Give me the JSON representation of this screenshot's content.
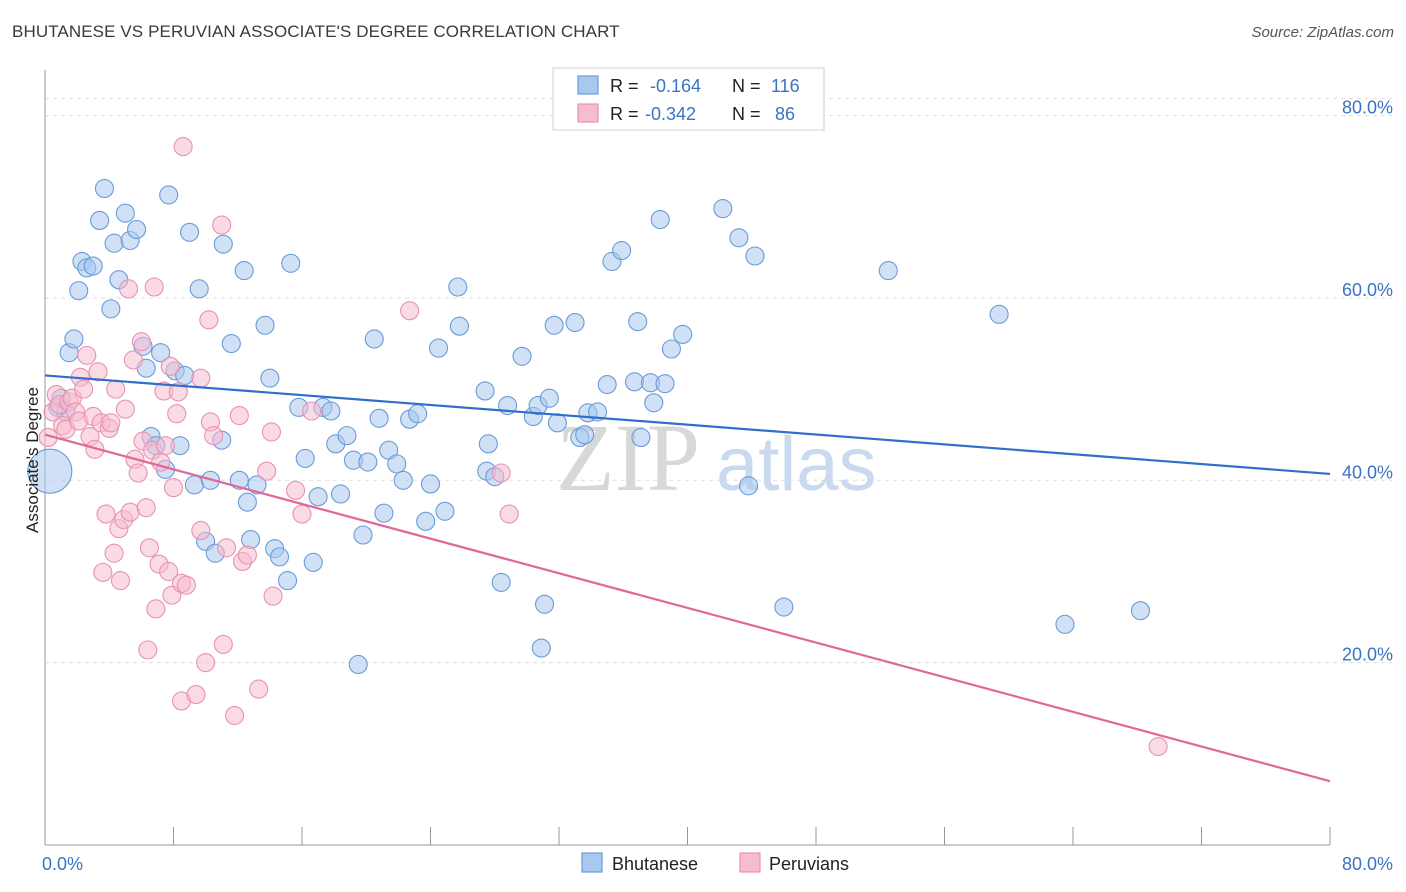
{
  "title": "BHUTANESE VS PERUVIAN ASSOCIATE'S DEGREE CORRELATION CHART",
  "source": "Source: ZipAtlas.com",
  "watermark": {
    "zip": "ZIP",
    "atlas": "atlas"
  },
  "colors": {
    "blue_fill": "#a9c8ef",
    "blue_stroke": "#6a9bd8",
    "blue_line": "#2f6fcb",
    "pink_fill": "#f6bcd0",
    "pink_stroke": "#e892b0",
    "pink_line": "#e0679a",
    "axis_text": "#3b73c4",
    "grid": "#dddddd"
  },
  "legend": {
    "rows": [
      {
        "r_label": "R =",
        "r_value": "-0.164",
        "n_label": "N =",
        "n_value": "116",
        "series": "blue"
      },
      {
        "r_label": "R =",
        "r_value": "-0.342",
        "n_label": "N =",
        "n_value": "86",
        "series": "pink"
      }
    ]
  },
  "chart_data": {
    "type": "scatter",
    "title": "BHUTANESE VS PERUVIAN ASSOCIATE'S DEGREE CORRELATION CHART",
    "xlabel": "",
    "ylabel": "Associate's Degree",
    "xlim": [
      0,
      80
    ],
    "ylim": [
      0,
      85
    ],
    "x_tick_labels": [
      "0.0%",
      "80.0%"
    ],
    "y_ticks": [
      20,
      40,
      60,
      80
    ],
    "y_tick_labels": [
      "20.0%",
      "40.0%",
      "60.0%",
      "80.0%"
    ],
    "grid": true,
    "legend_placement": "top-center",
    "series": [
      {
        "name": "Bhutanese",
        "color": "#6a9bd8",
        "trend": {
          "x": [
            0,
            80
          ],
          "y": [
            51.5,
            40.7
          ]
        },
        "points": [
          [
            0.3,
            41
          ],
          [
            0.8,
            48
          ],
          [
            1,
            49
          ],
          [
            1.3,
            47.5
          ],
          [
            1.5,
            54
          ],
          [
            1.8,
            55.5
          ],
          [
            2.1,
            60.8
          ],
          [
            2.3,
            64
          ],
          [
            2.6,
            63.3
          ],
          [
            3,
            63.5
          ],
          [
            3.4,
            68.5
          ],
          [
            3.7,
            72
          ],
          [
            4.1,
            58.8
          ],
          [
            4.3,
            66
          ],
          [
            4.6,
            62
          ],
          [
            5,
            69.3
          ],
          [
            5.3,
            66.3
          ],
          [
            5.7,
            67.5
          ],
          [
            6.1,
            54.7
          ],
          [
            6.3,
            52.3
          ],
          [
            6.6,
            44.8
          ],
          [
            6.9,
            43.8
          ],
          [
            7.2,
            54
          ],
          [
            7.5,
            41.2
          ],
          [
            7.7,
            71.3
          ],
          [
            8.1,
            52
          ],
          [
            8.4,
            43.8
          ],
          [
            8.7,
            51.5
          ],
          [
            9,
            67.2
          ],
          [
            9.3,
            39.5
          ],
          [
            9.6,
            61
          ],
          [
            10,
            33.3
          ],
          [
            10.3,
            40
          ],
          [
            10.6,
            32
          ],
          [
            11,
            44.4
          ],
          [
            11.1,
            65.9
          ],
          [
            11.6,
            55
          ],
          [
            12.1,
            40
          ],
          [
            12.4,
            63
          ],
          [
            12.6,
            37.6
          ],
          [
            12.8,
            33.5
          ],
          [
            13.2,
            39.5
          ],
          [
            13.7,
            57
          ],
          [
            14,
            51.2
          ],
          [
            14.3,
            32.5
          ],
          [
            14.6,
            31.6
          ],
          [
            15.1,
            29
          ],
          [
            15.3,
            63.8
          ],
          [
            15.8,
            48
          ],
          [
            16.2,
            42.4
          ],
          [
            16.7,
            31
          ],
          [
            17,
            38.2
          ],
          [
            17.3,
            48
          ],
          [
            17.8,
            47.6
          ],
          [
            18.1,
            44
          ],
          [
            18.4,
            38.5
          ],
          [
            18.8,
            44.9
          ],
          [
            19.2,
            42.2
          ],
          [
            19.5,
            19.8
          ],
          [
            19.8,
            34
          ],
          [
            20.1,
            42
          ],
          [
            20.5,
            55.5
          ],
          [
            20.8,
            46.8
          ],
          [
            21.1,
            36.4
          ],
          [
            21.4,
            43.3
          ],
          [
            21.9,
            41.8
          ],
          [
            22.3,
            40
          ],
          [
            22.7,
            46.7
          ],
          [
            23.2,
            47.3
          ],
          [
            23.7,
            35.5
          ],
          [
            24,
            39.6
          ],
          [
            24.5,
            54.5
          ],
          [
            24.9,
            36.6
          ],
          [
            25.8,
            56.9
          ],
          [
            25.7,
            61.2
          ],
          [
            27.4,
            49.8
          ],
          [
            27.6,
            44
          ],
          [
            27.5,
            41
          ],
          [
            28,
            40.4
          ],
          [
            28.4,
            28.8
          ],
          [
            28.8,
            48.2
          ],
          [
            29.7,
            53.6
          ],
          [
            30.4,
            47
          ],
          [
            30.7,
            48.2
          ],
          [
            31.1,
            26.4
          ],
          [
            30.9,
            21.6
          ],
          [
            31.4,
            49
          ],
          [
            31.7,
            57
          ],
          [
            31.9,
            46.3
          ],
          [
            33,
            57.3
          ],
          [
            33.3,
            44.7
          ],
          [
            33.6,
            45
          ],
          [
            33.8,
            47.4
          ],
          [
            34.4,
            47.5
          ],
          [
            35,
            50.5
          ],
          [
            35.3,
            64
          ],
          [
            35.9,
            65.2
          ],
          [
            36.7,
            50.8
          ],
          [
            36.9,
            57.4
          ],
          [
            37.1,
            44.7
          ],
          [
            37.7,
            50.7
          ],
          [
            37.9,
            48.5
          ],
          [
            38.3,
            68.6
          ],
          [
            38.6,
            50.6
          ],
          [
            39,
            54.4
          ],
          [
            39.7,
            56
          ],
          [
            42.2,
            69.8
          ],
          [
            43.2,
            66.6
          ],
          [
            43.8,
            39.4
          ],
          [
            44.2,
            64.6
          ],
          [
            46,
            26.1
          ],
          [
            52.5,
            63
          ],
          [
            59.4,
            58.2
          ],
          [
            63.5,
            24.2
          ],
          [
            68.2,
            25.7
          ]
        ]
      },
      {
        "name": "Peruvians",
        "color": "#e892b0",
        "trend": {
          "x": [
            0,
            80
          ],
          "y": [
            45,
            7
          ]
        },
        "points": [
          [
            0.2,
            44.7
          ],
          [
            0.5,
            47.5
          ],
          [
            0.7,
            49.4
          ],
          [
            0.9,
            48.3
          ],
          [
            1.1,
            46
          ],
          [
            1.3,
            45.6
          ],
          [
            1.5,
            48.6
          ],
          [
            1.7,
            49
          ],
          [
            1.9,
            47.5
          ],
          [
            2.1,
            46.5
          ],
          [
            2.2,
            51.3
          ],
          [
            2.4,
            50
          ],
          [
            2.6,
            53.7
          ],
          [
            2.8,
            44.8
          ],
          [
            3,
            47
          ],
          [
            3.1,
            43.4
          ],
          [
            3.3,
            51.9
          ],
          [
            3.5,
            46.3
          ],
          [
            3.6,
            29.9
          ],
          [
            3.8,
            36.3
          ],
          [
            4,
            45.7
          ],
          [
            4.1,
            46.3
          ],
          [
            4.3,
            32
          ],
          [
            4.4,
            50
          ],
          [
            4.6,
            34.7
          ],
          [
            4.7,
            29
          ],
          [
            4.9,
            35.7
          ],
          [
            5,
            47.8
          ],
          [
            5.2,
            61
          ],
          [
            5.3,
            36.5
          ],
          [
            5.5,
            53.2
          ],
          [
            5.6,
            42.3
          ],
          [
            5.8,
            40.8
          ],
          [
            6,
            55.2
          ],
          [
            6.1,
            44.3
          ],
          [
            6.3,
            37
          ],
          [
            6.4,
            21.4
          ],
          [
            6.5,
            32.6
          ],
          [
            6.7,
            43.3
          ],
          [
            6.8,
            61.2
          ],
          [
            6.9,
            25.9
          ],
          [
            7.1,
            30.8
          ],
          [
            7.2,
            42
          ],
          [
            7.4,
            49.8
          ],
          [
            7.5,
            43.8
          ],
          [
            7.7,
            30
          ],
          [
            7.8,
            52.5
          ],
          [
            7.9,
            27.4
          ],
          [
            8,
            39.2
          ],
          [
            8.2,
            47.3
          ],
          [
            8.3,
            49.7
          ],
          [
            8.5,
            28.7
          ],
          [
            8.6,
            76.6
          ],
          [
            8.8,
            28.5
          ],
          [
            8.5,
            15.8
          ],
          [
            9.4,
            16.5
          ],
          [
            9.7,
            34.5
          ],
          [
            9.7,
            51.2
          ],
          [
            10,
            20
          ],
          [
            10.2,
            57.6
          ],
          [
            10.3,
            46.4
          ],
          [
            10.5,
            44.9
          ],
          [
            11,
            68
          ],
          [
            11.1,
            22
          ],
          [
            11.3,
            32.6
          ],
          [
            11.8,
            14.2
          ],
          [
            12.1,
            47.1
          ],
          [
            12.3,
            31.1
          ],
          [
            12.6,
            31.8
          ],
          [
            13.3,
            17.1
          ],
          [
            13.8,
            41
          ],
          [
            14.1,
            45.3
          ],
          [
            14.2,
            27.3
          ],
          [
            15.6,
            38.9
          ],
          [
            16,
            36.3
          ],
          [
            16.6,
            47.6
          ],
          [
            22.7,
            58.6
          ],
          [
            28.4,
            40.8
          ],
          [
            28.9,
            36.3
          ],
          [
            69.3,
            10.8
          ]
        ]
      }
    ]
  }
}
